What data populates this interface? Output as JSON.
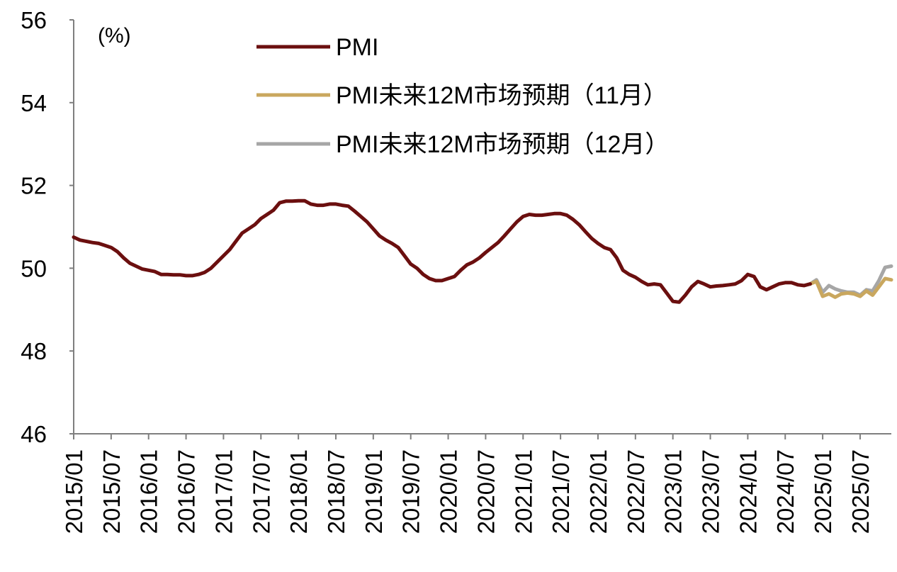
{
  "chart_data": {
    "type": "line",
    "ylabel": "(%)",
    "ylim": [
      46,
      56
    ],
    "yticks": [
      46,
      48,
      50,
      52,
      54,
      56
    ],
    "xlim": [
      "2015/01",
      "2025/12"
    ],
    "xticks": [
      "2015/01",
      "2015/07",
      "2016/01",
      "2016/07",
      "2017/01",
      "2017/07",
      "2018/01",
      "2018/07",
      "2019/01",
      "2019/07",
      "2020/01",
      "2020/07",
      "2021/01",
      "2021/07",
      "2022/01",
      "2022/07",
      "2023/01",
      "2023/07",
      "2024/01",
      "2024/07",
      "2025/01",
      "2025/07"
    ],
    "grid": false,
    "legend_position": "top",
    "series": [
      {
        "name": "PMI",
        "color": "#6b0f0f",
        "x": [
          "2015/01",
          "2015/02",
          "2015/03",
          "2015/04",
          "2015/05",
          "2015/06",
          "2015/07",
          "2015/08",
          "2015/09",
          "2015/10",
          "2015/11",
          "2015/12",
          "2016/01",
          "2016/02",
          "2016/03",
          "2016/04",
          "2016/05",
          "2016/06",
          "2016/07",
          "2016/08",
          "2016/09",
          "2016/10",
          "2016/11",
          "2016/12",
          "2017/01",
          "2017/02",
          "2017/03",
          "2017/04",
          "2017/05",
          "2017/06",
          "2017/07",
          "2017/08",
          "2017/09",
          "2017/10",
          "2017/11",
          "2017/12",
          "2018/01",
          "2018/02",
          "2018/03",
          "2018/04",
          "2018/05",
          "2018/06",
          "2018/07",
          "2018/08",
          "2018/09",
          "2018/10",
          "2018/11",
          "2018/12",
          "2019/01",
          "2019/02",
          "2019/03",
          "2019/04",
          "2019/05",
          "2019/06",
          "2019/07",
          "2019/08",
          "2019/09",
          "2019/10",
          "2019/11",
          "2019/12",
          "2020/01",
          "2020/02",
          "2020/03",
          "2020/04",
          "2020/05",
          "2020/06",
          "2020/07",
          "2020/08",
          "2020/09",
          "2020/10",
          "2020/11",
          "2020/12",
          "2021/01",
          "2021/02",
          "2021/03",
          "2021/04",
          "2021/05",
          "2021/06",
          "2021/07",
          "2021/08",
          "2021/09",
          "2021/10",
          "2021/11",
          "2021/12",
          "2022/01",
          "2022/02",
          "2022/03",
          "2022/04",
          "2022/05",
          "2022/06",
          "2022/07",
          "2022/08",
          "2022/09",
          "2022/10",
          "2022/11",
          "2022/12",
          "2023/01",
          "2023/02",
          "2023/03",
          "2023/04",
          "2023/05",
          "2023/06",
          "2023/07",
          "2023/08",
          "2023/09",
          "2023/10",
          "2023/11",
          "2023/12",
          "2024/01",
          "2024/02",
          "2024/03",
          "2024/04",
          "2024/05",
          "2024/06",
          "2024/07",
          "2024/08",
          "2024/09",
          "2024/10",
          "2024/11"
        ],
        "values": [
          50.75,
          50.68,
          50.65,
          50.62,
          50.6,
          50.55,
          50.5,
          50.4,
          50.25,
          50.12,
          50.05,
          49.98,
          49.95,
          49.92,
          49.85,
          49.85,
          49.84,
          49.84,
          49.82,
          49.82,
          49.85,
          49.9,
          50.0,
          50.15,
          50.3,
          50.45,
          50.65,
          50.85,
          50.95,
          51.05,
          51.2,
          51.3,
          51.4,
          51.58,
          51.62,
          51.62,
          51.63,
          51.63,
          51.55,
          51.52,
          51.52,
          51.55,
          51.55,
          51.52,
          51.5,
          51.38,
          51.25,
          51.12,
          50.95,
          50.78,
          50.68,
          50.6,
          50.5,
          50.3,
          50.1,
          50.0,
          49.85,
          49.75,
          49.7,
          49.7,
          49.75,
          49.8,
          49.95,
          50.08,
          50.15,
          50.25,
          50.38,
          50.5,
          50.62,
          50.78,
          50.95,
          51.12,
          51.25,
          51.3,
          51.28,
          51.28,
          51.3,
          51.32,
          51.32,
          51.28,
          51.18,
          51.05,
          50.88,
          50.72,
          50.6,
          50.5,
          50.45,
          50.25,
          49.95,
          49.85,
          49.78,
          49.68,
          49.6,
          49.62,
          49.6,
          49.4,
          49.2,
          49.18,
          49.35,
          49.55,
          49.68,
          49.62,
          49.55,
          49.57,
          49.58,
          49.6,
          49.62,
          49.7,
          49.85,
          49.8,
          49.55,
          49.48,
          49.55,
          49.62,
          49.65,
          49.65,
          49.6,
          49.58,
          49.62
        ]
      },
      {
        "name": "PMI未来12M市场预期（11月）",
        "color": "#c9a75e",
        "x": [
          "2024/11",
          "2024/12",
          "2025/01",
          "2025/02",
          "2025/03",
          "2025/04",
          "2025/05",
          "2025/06",
          "2025/07",
          "2025/08",
          "2025/09",
          "2025/10",
          "2025/11",
          "2025/12"
        ],
        "values": [
          49.62,
          49.68,
          49.32,
          49.38,
          49.3,
          49.38,
          49.4,
          49.38,
          49.32,
          49.45,
          49.35,
          49.55,
          49.75,
          49.72
        ]
      },
      {
        "name": "PMI未来12M市场预期（12月）",
        "color": "#a6a6a6",
        "x": [
          "2024/11",
          "2024/12",
          "2025/01",
          "2025/02",
          "2025/03",
          "2025/04",
          "2025/05",
          "2025/06",
          "2025/07",
          "2025/08",
          "2025/09",
          "2025/10",
          "2025/11",
          "2025/12"
        ],
        "values": [
          49.62,
          49.72,
          49.42,
          49.58,
          49.5,
          49.45,
          49.42,
          49.42,
          49.35,
          49.48,
          49.45,
          49.7,
          50.02,
          50.05
        ]
      }
    ]
  }
}
